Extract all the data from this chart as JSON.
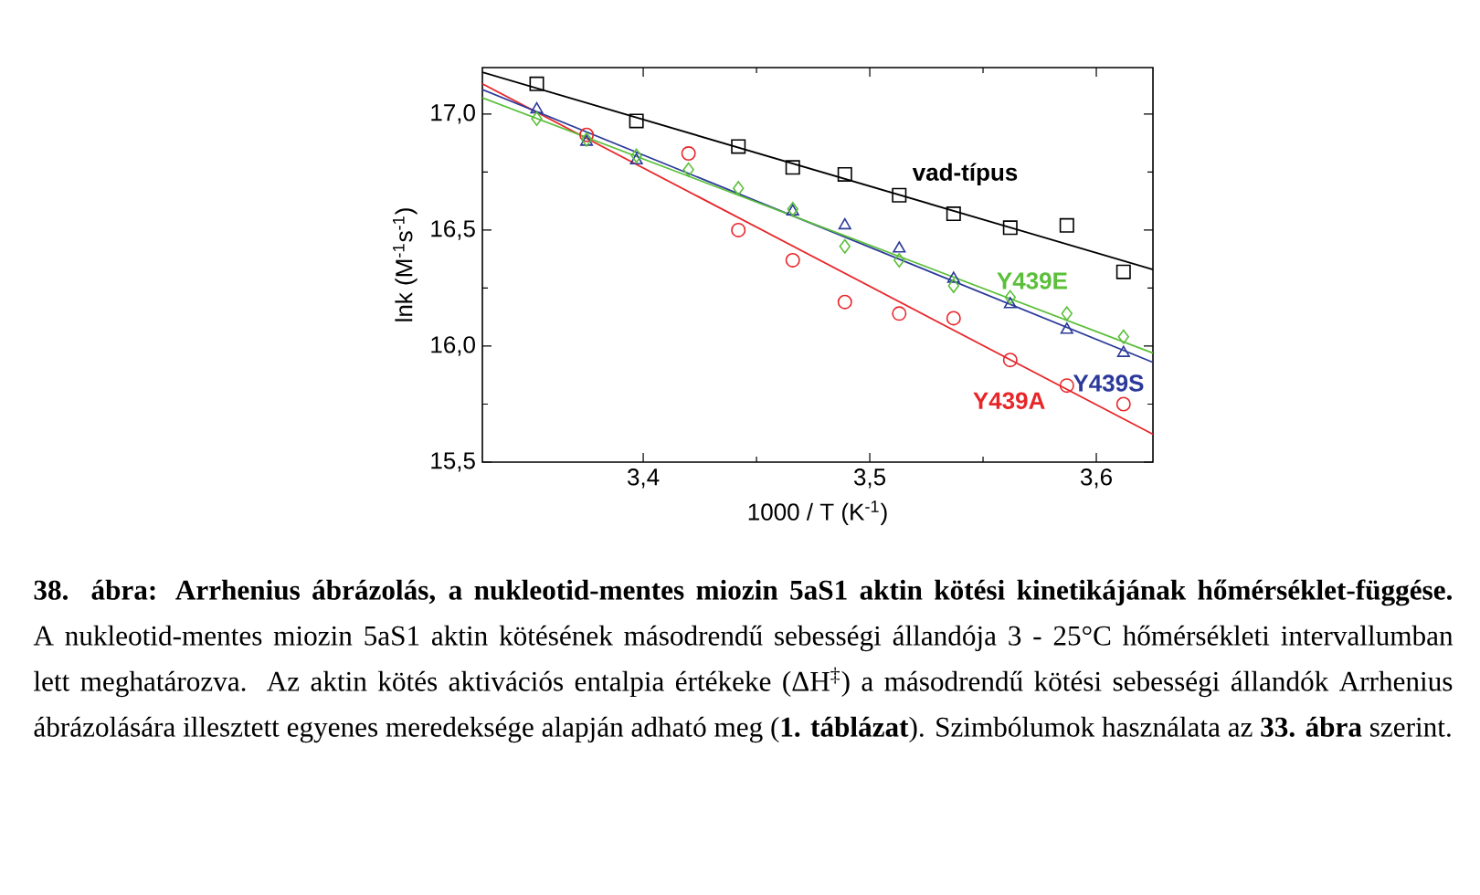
{
  "chart_data": {
    "type": "scatter",
    "xlabel": "1000 / T (K$^{-1}$)",
    "ylabel": "lnk (M$^{-1}$s$^{-1}$)",
    "xlim": [
      3.329,
      3.625
    ],
    "ylim": [
      15.5,
      17.2
    ],
    "xticks": [
      {
        "value": 3.4,
        "label": "3,4"
      },
      {
        "value": 3.5,
        "label": "3,5"
      },
      {
        "value": 3.6,
        "label": "3,6"
      }
    ],
    "yticks": [
      {
        "value": 15.5,
        "label": "15,5"
      },
      {
        "value": 16.0,
        "label": "16,0"
      },
      {
        "value": 16.5,
        "label": "16,5"
      },
      {
        "value": 17.0,
        "label": "17,0"
      }
    ],
    "grid": false,
    "series": [
      {
        "color": "#000000",
        "marker": "square",
        "x": [
          3.353,
          3.397,
          3.442,
          3.466,
          3.489,
          3.513,
          3.537,
          3.562,
          3.587,
          3.612
        ],
        "values": [
          17.13,
          16.97,
          16.86,
          16.77,
          16.74,
          16.65,
          16.57,
          16.51,
          16.52,
          16.32
        ]
      },
      {
        "color": "#e8262a",
        "marker": "circle",
        "x": [
          3.375,
          3.42,
          3.442,
          3.466,
          3.489,
          3.513,
          3.537,
          3.562,
          3.587,
          3.612
        ],
        "values": [
          16.91,
          16.83,
          16.5,
          16.37,
          16.19,
          16.14,
          16.12,
          15.94,
          15.83,
          15.75
        ]
      },
      {
        "color": "#2b3a9a",
        "marker": "triangle",
        "x": [
          3.353,
          3.375,
          3.397,
          3.466,
          3.489,
          3.513,
          3.537,
          3.562,
          3.587,
          3.612
        ],
        "values": [
          17.02,
          16.88,
          16.8,
          16.58,
          16.52,
          16.42,
          16.29,
          16.18,
          16.07,
          15.97
        ]
      },
      {
        "color": "#5bbf3a",
        "marker": "diamond",
        "x": [
          3.353,
          3.375,
          3.397,
          3.42,
          3.442,
          3.466,
          3.489,
          3.513,
          3.537,
          3.562,
          3.587,
          3.612
        ],
        "values": [
          16.98,
          16.89,
          16.82,
          16.76,
          16.68,
          16.59,
          16.43,
          16.37,
          16.26,
          16.21,
          16.14,
          16.04
        ]
      },
      {
        "type": "line",
        "name": "vad-típus",
        "color": "#000000",
        "x": [
          3.329,
          3.625
        ],
        "values": [
          17.18,
          16.33
        ]
      },
      {
        "type": "line",
        "name": "Y439A",
        "color": "#e8262a",
        "x": [
          3.329,
          3.625
        ],
        "values": [
          17.13,
          15.62
        ]
      },
      {
        "type": "line",
        "name": "Y439S",
        "color": "#2b3a9a",
        "x": [
          3.329,
          3.625
        ],
        "values": [
          17.105,
          15.93
        ]
      },
      {
        "type": "line",
        "name": "Y439E",
        "color": "#5bbf3a",
        "x": [
          3.329,
          3.625
        ],
        "values": [
          17.07,
          15.97
        ]
      }
    ],
    "annotations": [
      "**38. ábra: Arrhenius ábrázolás, a nukleotid-mentes miozin 5aS1 aktin kötési kinetikájának hőmérséklet-függése.** A nukleotid-mentes miozin 5aS1 aktin kötésének másodrendű sebességi állandója 3 - 25°C hőmérsékleti intervallumban lett meghatározva. Az aktin kötés aktivációs entalpia értékeke (ΔH$^{‡}$) a másodrendű kötési sebességi állandók Arrhenius ábrázolására illesztett egyenes meredeksége alapján adható meg (**1. táblázat**). Szimbólumok használata az **33. ábra** szerint."
    ]
  }
}
